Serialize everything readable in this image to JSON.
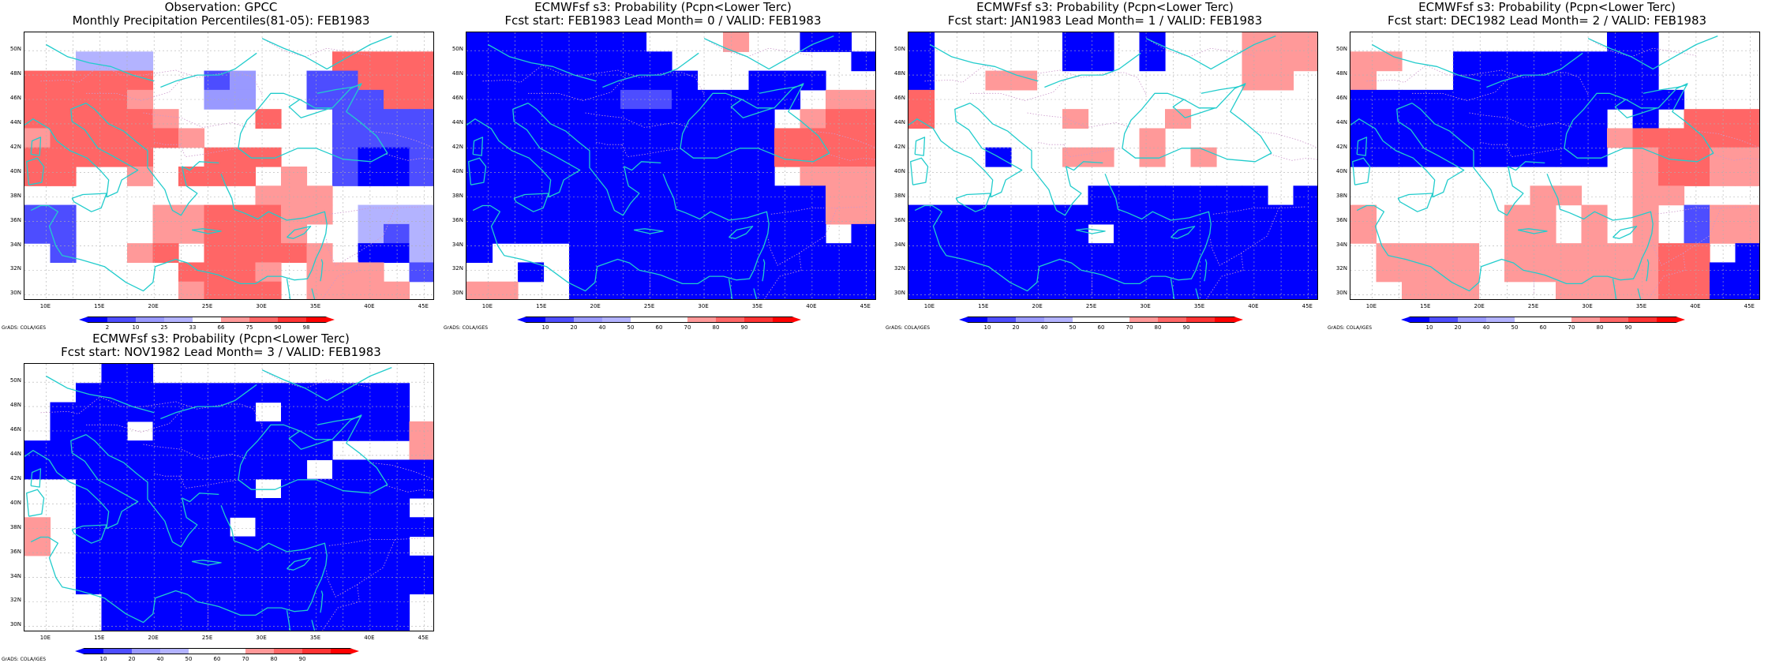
{
  "colors": {
    "coast": "#22cccc",
    "border": "#cc99cc",
    "grid": "#b0b0b0",
    "dark_blue": "#0000ff",
    "mid_blue": "#4d4dff",
    "light_blue": "#9999ff",
    "lightest_blue": "#b3b3ff",
    "white": "#ffffff",
    "light_red": "#ff9999",
    "mid_red": "#ff6666",
    "red": "#ff3333",
    "dark_red": "#ff0000"
  },
  "lat_labels": [
    "50N",
    "48N",
    "46N",
    "44N",
    "42N",
    "40N",
    "38N",
    "36N",
    "34N",
    "32N",
    "30N"
  ],
  "lon_labels": [
    "10E",
    "15E",
    "20E",
    "25E",
    "30E",
    "35E",
    "40E",
    "45E"
  ],
  "credit": "GrADS: COLA/IGES",
  "panels": [
    {
      "title_line1": "Observation: GPCC",
      "title_line2": "Monthly Precipitation Percentiles(81-05): FEB1983",
      "colorbar": {
        "type": "percentile",
        "labels": [
          "2",
          "10",
          "25",
          "33",
          "66",
          "75",
          "90",
          "98"
        ]
      }
    },
    {
      "title_line1": "ECMWFsf s3: Probability (Pcpn<Lower Terc)",
      "title_line2": "Fcst start: FEB1983   Lead Month= 0 / VALID: FEB1983",
      "colorbar": {
        "type": "probability",
        "labels": [
          "10",
          "20",
          "40",
          "50",
          "60",
          "70",
          "80",
          "90"
        ]
      }
    },
    {
      "title_line1": "ECMWFsf s3: Probability (Pcpn<Lower Terc)",
      "title_line2": "Fcst start: JAN1983   Lead Month= 1 / VALID: FEB1983",
      "colorbar": {
        "type": "probability",
        "labels": [
          "10",
          "20",
          "40",
          "50",
          "60",
          "70",
          "80",
          "90"
        ]
      }
    },
    {
      "title_line1": "ECMWFsf s3: Probability (Pcpn<Lower Terc)",
      "title_line2": "Fcst start: DEC1982   Lead Month= 2 / VALID: FEB1983",
      "colorbar": {
        "type": "probability",
        "labels": [
          "10",
          "20",
          "40",
          "50",
          "60",
          "70",
          "80",
          "90"
        ]
      }
    },
    {
      "title_line1": "ECMWFsf s3: Probability (Pcpn<Lower Terc)",
      "title_line2": "Fcst start: NOV1982   Lead Month= 3 / VALID: FEB1983",
      "colorbar": {
        "type": "probability",
        "labels": [
          "10",
          "20",
          "40",
          "50",
          "60",
          "70",
          "80",
          "90"
        ]
      }
    }
  ],
  "grids": [
    [
      "................",
      "..ppp.......RRRR",
      "RRRRR..mq..mmRRR",
      "RRRRr..qq..mmmRR",
      "RRRRRr...R..mmmm",
      "rRRRRRr.....mmmm",
      "RRRRR..RRR..mbbm",
      "RR..r.RRR.r.mbbm",
      ".........rrr....",
      "mm...rrRRRrr.ccc",
      "mm...rrRRRr..cmc",
      ".m..rR.RRRRr.bbc",
      "......RRRr.rrr.m",
      "......rRRR.rrrr."
    ],
    [
      "bbbbbbb...r..bb.",
      "bbbbbbbb.......b",
      "bbbbbbbbb..bbb..",
      "bbbbbbmmbbbbb.rr",
      "bbbbbbbbbbbb.rRR",
      "bbbbbbbbbbbbRRRR",
      "bbbbbbbbbbbbRRRR",
      "bbbbbbbbbbbb.rrr",
      "bbbbbbbbbbbbbbrr",
      "bbbbbbbbbbbbbbrr",
      "bbbbbbbbbbbbbb.b",
      "b...bbbbbbbbbbbb",
      "..b.bbbbbbbbbbbb",
      "rr..bbbbbbbbbbbb"
    ],
    [
      "b.....bb.b...rrr",
      "b.....bb.b...rrr",
      "b..rr........rr.",
      "R...............",
      "R.....r...r.....",
      ".........r......",
      "...b..rr.r.r....",
      "................",
      ".......bbbbbbb.b",
      "bbbbbbbbbbbbbbbb",
      "bbbbbbb.bbbbbbbb",
      "bbbbbbbbbbbbbbbb",
      "bbbbbbbbbbbbbbbb",
      "bbbbbbbbbbbbbbbb"
    ],
    [
      "..........bb....",
      "rr..bbbbbbbb....",
      "r...bbbbbbbb....",
      "bbbbbbbbbbbbb...",
      "bbbbbbbbbb.b.RRR",
      "bbbbbbbbbbrRRRRR",
      "bbbbbbbbbb.rRRrr",
      "...........rRRrr",
      ".......rr..rr...",
      "r.....rr.r.r.mrr",
      "r.....rr.r.r.mrr",
      ".rrrr.rrrrrrRR.b",
      ".rrrr.rrrrrrRRbb",
      "..rrr...rrrrRRbb"
    ],
    [
      "...bb...........",
      "..bbbbbbbbbbbbb.",
      ".bbbbbbbb.bbbbb.",
      ".bbb.bbbbbbbbbbr",
      "bbbbbbbbbbbb...r",
      "bbbbbbbbbbb.bbbb",
      "..bbbbbbb.bbbbbb",
      "..bbbbbbbbbbbbb.",
      "r.bbbbbb.bbbbbbb",
      "r.bbbbbbbbbbbbb.",
      "..bbbbbbbbbbbbbb",
      "..bbbbbbbbbbbbbb",
      "...bbbbbbbbbbbb.",
      "...bbbbbbbbbbbb."
    ]
  ]
}
